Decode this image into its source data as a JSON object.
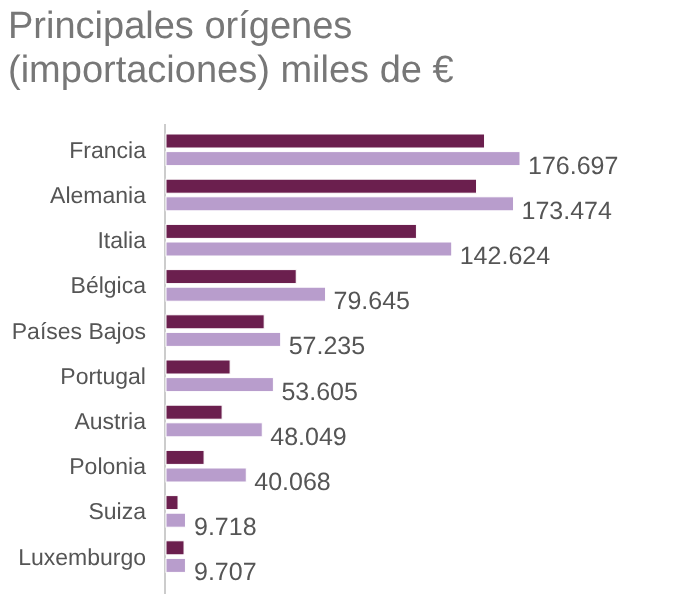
{
  "chart_data": {
    "type": "bar",
    "orientation": "horizontal",
    "title": "Principales orígenes (importaciones) miles de €",
    "categories": [
      "Francia",
      "Alemania",
      "Italia",
      "Bélgica",
      "Países Bajos",
      "Portugal",
      "Austria",
      "Polonia",
      "Suiza",
      "Luxemburgo"
    ],
    "series": [
      {
        "color": "#6b1f4e",
        "values": [
          159000,
          155000,
          125000,
          65000,
          49000,
          32000,
          28000,
          19000,
          6000,
          9000
        ]
      },
      {
        "color": "#b89dcc",
        "values": [
          176697,
          173474,
          142624,
          79645,
          57235,
          53605,
          48049,
          40068,
          9718,
          9707
        ],
        "value_labels": [
          "176.697",
          "173.474",
          "142.624",
          "79.645",
          "57.235",
          "53.605",
          "48.049",
          "40.068",
          "9.718",
          "9.707"
        ]
      }
    ]
  }
}
